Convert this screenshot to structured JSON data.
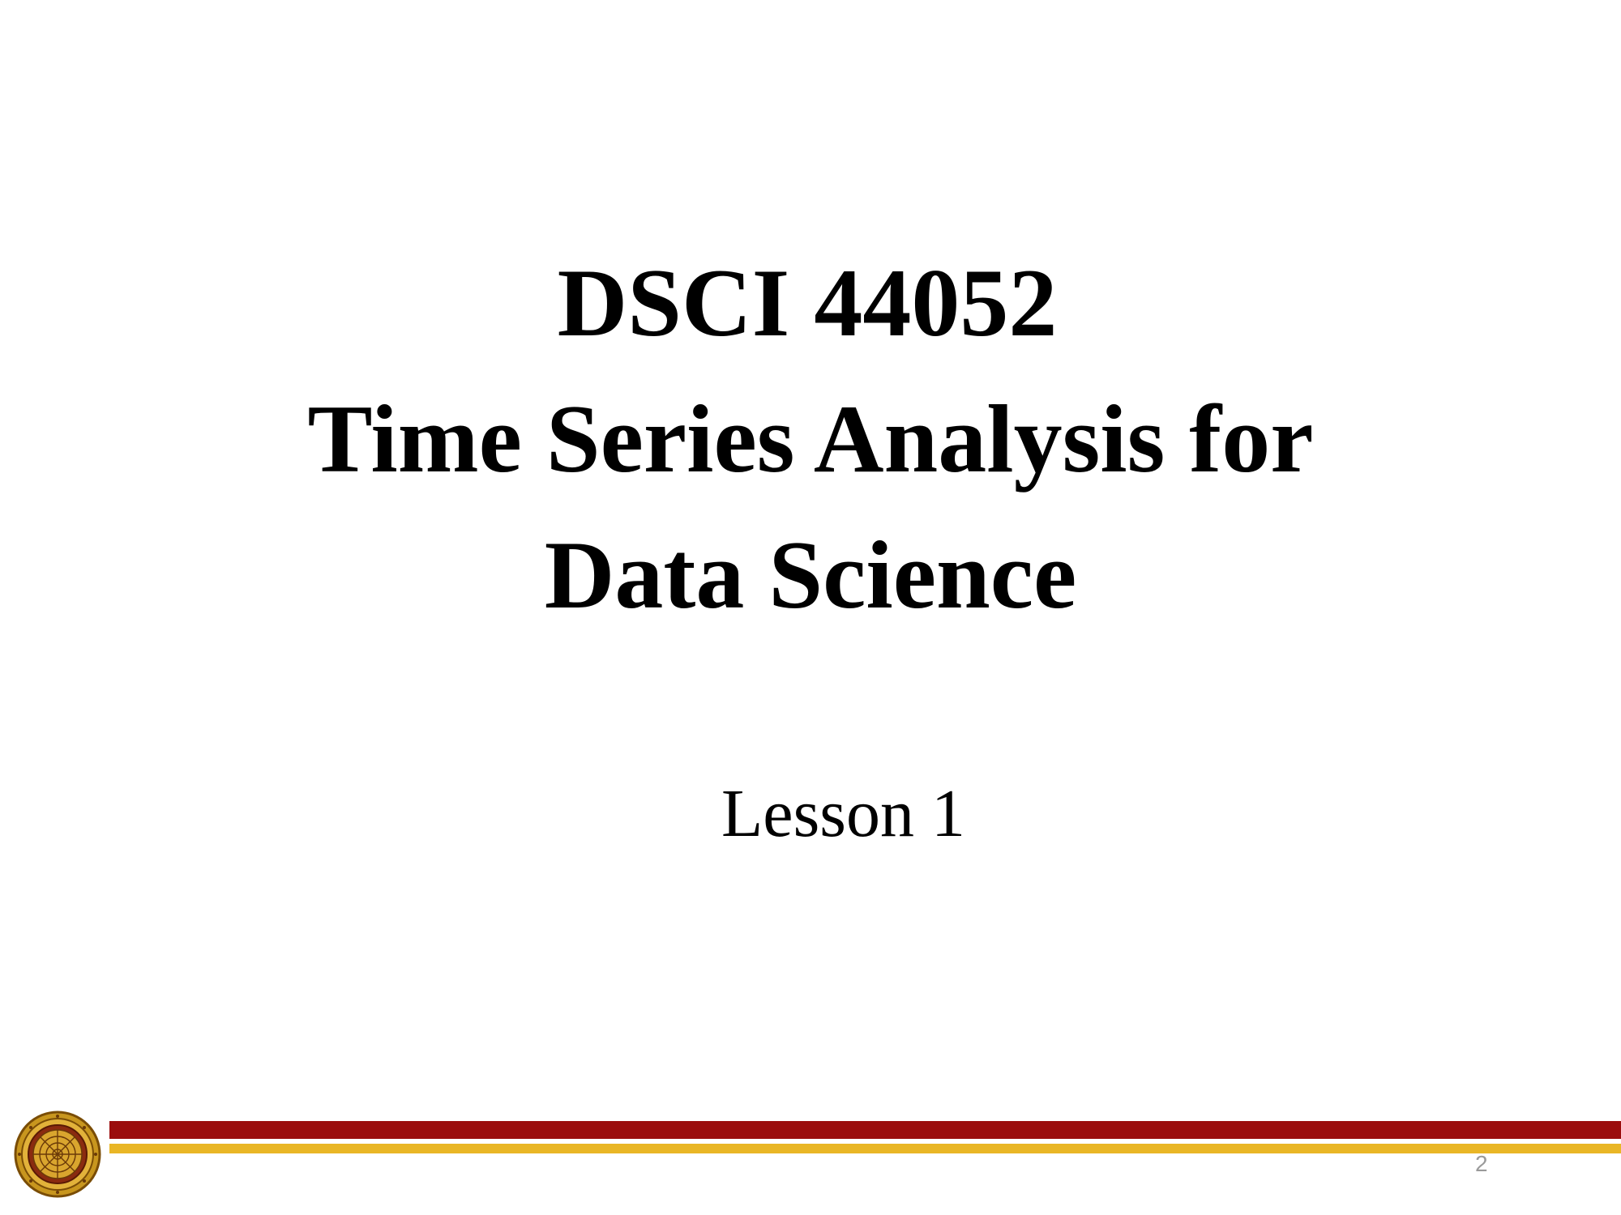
{
  "slide": {
    "title_lines": [
      "DSCI 44052",
      "Time Series Analysis for",
      "Data Science"
    ],
    "subtitle": "Lesson 1",
    "page_number": "2",
    "footer": {
      "logo_icon": "university-seal-icon",
      "stripe_colors": {
        "red": "#9b0d0d",
        "gold": "#e9b626"
      }
    }
  }
}
